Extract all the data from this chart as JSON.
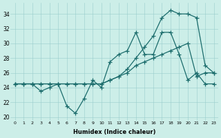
{
  "xlabel": "Humidex (Indice chaleur)",
  "xlim": [
    -0.5,
    23.5
  ],
  "ylim": [
    19.5,
    35.5
  ],
  "yticks": [
    20,
    22,
    24,
    26,
    28,
    30,
    32,
    34
  ],
  "xticks": [
    0,
    1,
    2,
    3,
    4,
    5,
    6,
    7,
    8,
    9,
    10,
    11,
    12,
    13,
    14,
    15,
    16,
    17,
    18,
    19,
    20,
    21,
    22,
    23
  ],
  "bg_color": "#cceee8",
  "line_color": "#1a6b6b",
  "series1_x": [
    0,
    1,
    2,
    3,
    4,
    5,
    6,
    7,
    8,
    9,
    10,
    11,
    12,
    13,
    14,
    15,
    16,
    17,
    18,
    19,
    20,
    21,
    22,
    23
  ],
  "series1_y": [
    24.5,
    24.5,
    24.5,
    23.5,
    24.0,
    24.5,
    21.5,
    20.5,
    22.5,
    25.0,
    24.0,
    27.5,
    28.5,
    29.0,
    31.5,
    28.5,
    28.5,
    31.5,
    31.5,
    28.5,
    25.0,
    26.0,
    24.5,
    24.5
  ],
  "series2_x": [
    0,
    1,
    2,
    3,
    4,
    5,
    6,
    7,
    8,
    9,
    10,
    11,
    12,
    13,
    14,
    15,
    16,
    17,
    18,
    19,
    20,
    21,
    22,
    23
  ],
  "series2_y": [
    24.5,
    24.5,
    24.5,
    24.5,
    24.5,
    24.5,
    24.5,
    24.5,
    24.5,
    24.5,
    24.5,
    25.0,
    25.5,
    26.0,
    27.0,
    27.5,
    28.0,
    28.5,
    29.0,
    29.5,
    30.0,
    25.5,
    26.0,
    26.0
  ],
  "series3_x": [
    0,
    1,
    2,
    3,
    4,
    5,
    6,
    7,
    8,
    9,
    10,
    11,
    12,
    13,
    14,
    15,
    16,
    17,
    18,
    19,
    20,
    21,
    22,
    23
  ],
  "series3_y": [
    24.5,
    24.5,
    24.5,
    24.5,
    24.5,
    24.5,
    24.5,
    24.5,
    24.5,
    24.5,
    24.5,
    25.0,
    25.5,
    26.5,
    28.0,
    29.5,
    31.0,
    33.5,
    34.5,
    34.0,
    34.0,
    33.5,
    27.0,
    26.0
  ]
}
